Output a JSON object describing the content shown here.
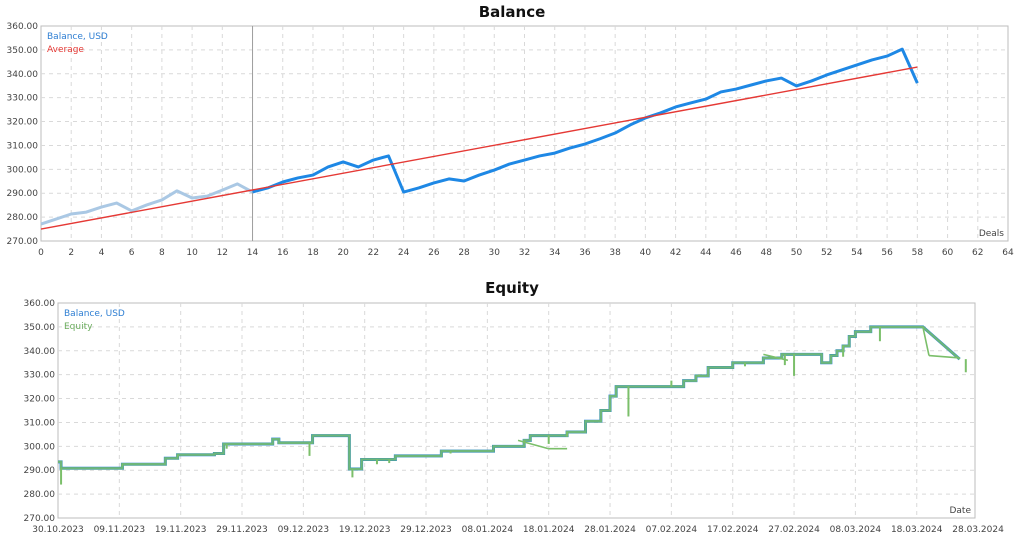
{
  "chart_data": [
    {
      "type": "line",
      "title": "Balance",
      "xlabel": "Deals",
      "ylabel": "",
      "xlim": [
        0,
        64
      ],
      "ylim": [
        270,
        360
      ],
      "grid": true,
      "legend_position": "top-left",
      "x_ticks": [
        0,
        2,
        4,
        6,
        8,
        10,
        12,
        14,
        16,
        18,
        20,
        22,
        24,
        26,
        28,
        30,
        32,
        34,
        36,
        38,
        40,
        42,
        44,
        46,
        48,
        50,
        52,
        54,
        56,
        58,
        60,
        62,
        64
      ],
      "y_ticks": [
        "270.00",
        "280.00",
        "290.00",
        "300.00",
        "310.00",
        "320.00",
        "330.00",
        "340.00",
        "350.00",
        "360.00"
      ],
      "marker_x": 14,
      "series": [
        {
          "name": "Balance, USD",
          "color": "#1e88e5",
          "faded_color": "#aac8e4",
          "faded_until": 14,
          "x": [
            0,
            1,
            2,
            3,
            4,
            5,
            6,
            7,
            8,
            9,
            10,
            11,
            12,
            13,
            14,
            15,
            16,
            17,
            18,
            19,
            20,
            21,
            22,
            23,
            24,
            25,
            26,
            27,
            28,
            29,
            30,
            31,
            32,
            33,
            34,
            35,
            36,
            37,
            38,
            39,
            40,
            41,
            42,
            43,
            44,
            45,
            46,
            47,
            48,
            49,
            50,
            51,
            52,
            53,
            54,
            55,
            56,
            57,
            58
          ],
          "values": [
            277.1,
            279.2,
            281.3,
            282.1,
            284.2,
            285.9,
            282.6,
            285.1,
            287.2,
            291.0,
            288.0,
            288.8,
            291.3,
            293.9,
            290.5,
            292.2,
            294.7,
            296.4,
            297.6,
            301.0,
            303.1,
            301.0,
            303.9,
            305.6,
            290.5,
            292.2,
            294.3,
            296.0,
            295.1,
            297.6,
            299.7,
            302.2,
            303.9,
            305.6,
            306.8,
            308.9,
            310.6,
            312.8,
            315.2,
            318.6,
            321.5,
            323.6,
            326.1,
            327.8,
            329.4,
            332.4,
            333.6,
            335.3,
            337.0,
            338.2,
            334.9,
            337.0,
            339.5,
            341.6,
            343.7,
            345.8,
            347.4,
            350.3,
            336.1
          ]
        },
        {
          "name": "Average",
          "color": "#e53935",
          "x": [
            0,
            58
          ],
          "values": [
            275.0,
            342.8
          ]
        }
      ]
    },
    {
      "type": "line",
      "title": "Equity",
      "xlabel": "Date",
      "ylabel": "",
      "ylim": [
        270,
        360
      ],
      "grid": true,
      "legend_position": "top-left",
      "x_ticks": [
        "30.10.2023",
        "09.11.2023",
        "19.11.2023",
        "29.11.2023",
        "09.12.2023",
        "19.12.2023",
        "29.12.2023",
        "08.01.2024",
        "18.01.2024",
        "28.01.2024",
        "07.02.2024",
        "17.02.2024",
        "27.02.2024",
        "08.03.2024",
        "18.03.2024",
        "28.03.2024"
      ],
      "x_range_days": [
        0,
        150
      ],
      "y_ticks": [
        "270.00",
        "280.00",
        "290.00",
        "300.00",
        "310.00",
        "320.00",
        "330.00",
        "340.00",
        "350.00",
        "360.00"
      ],
      "series": [
        {
          "name": "Balance, USD",
          "color": "#1e7fd8",
          "step": true,
          "days": [
            0,
            0.5,
            9.5,
            10.5,
            17.5,
            19.5,
            25.5,
            27,
            35,
            36,
            41,
            41.5,
            47.5,
            49.5,
            54,
            55,
            62.5,
            64,
            71,
            76,
            77,
            83,
            84,
            86,
            87.5,
            88.5,
            89.5,
            90,
            91,
            102,
            104,
            106,
            108,
            110,
            115,
            118,
            124,
            124.5,
            125.5,
            126,
            127,
            128,
            129,
            130,
            132.5,
            135,
            141,
            147
          ],
          "values": [
            293.5,
            290.8,
            290.8,
            292.5,
            295.0,
            296.5,
            297.0,
            301.0,
            303.0,
            301.5,
            301.5,
            304.5,
            290.5,
            294.5,
            294.5,
            296.0,
            298.0,
            298.0,
            300.0,
            302.5,
            304.5,
            306.0,
            306.0,
            310.5,
            310.5,
            315.0,
            315.0,
            321.0,
            325.0,
            327.5,
            329.5,
            333.0,
            333.0,
            335.0,
            337.0,
            338.5,
            338.5,
            335.0,
            335.0,
            338.0,
            340.0,
            342.0,
            346.0,
            348.0,
            350.0,
            350.0,
            350.0,
            336.5
          ]
        },
        {
          "name": "Equity",
          "color": "#7bbf6a",
          "dips": [
            {
              "day": 0.5,
              "low": 284.0
            },
            {
              "day": 10.5,
              "low": 291.5
            },
            {
              "day": 19.5,
              "low": 295.5
            },
            {
              "day": 27.5,
              "low": 299.0
            },
            {
              "day": 41,
              "low": 296.0
            },
            {
              "day": 48,
              "low": 287.0
            },
            {
              "day": 52,
              "low": 292.5
            },
            {
              "day": 54,
              "low": 293.0
            },
            {
              "day": 64,
              "low": 297.0
            },
            {
              "day": 71.5,
              "low": 300.0
            },
            {
              "day": 76,
              "low": 302.0
            },
            {
              "day": 80,
              "low": 301.0
            },
            {
              "day": 83,
              "low": 304.0
            },
            {
              "day": 93,
              "low": 312.5
            },
            {
              "day": 100,
              "low": 327.5
            },
            {
              "day": 104.5,
              "low": 330.0
            },
            {
              "day": 112,
              "low": 333.5
            },
            {
              "day": 118.5,
              "low": 334.0
            },
            {
              "day": 120,
              "low": 329.5
            },
            {
              "day": 128,
              "low": 337.5
            },
            {
              "day": 134,
              "low": 344.0
            },
            {
              "day": 148,
              "low": 331.0
            }
          ],
          "segments": [
            {
              "from_day": 75,
              "from": 302.5,
              "to_day": 80,
              "to": 299.0
            },
            {
              "from_day": 80,
              "from": 299.0,
              "to_day": 83,
              "to": 299.0
            },
            {
              "from_day": 115,
              "from": 338.5,
              "to_day": 119,
              "to": 336.0
            },
            {
              "from_day": 141,
              "from": 350.0,
              "to_day": 142,
              "to": 338.0
            },
            {
              "from_day": 142,
              "from": 338.0,
              "to_day": 147,
              "to": 337.0
            }
          ]
        }
      ]
    }
  ]
}
